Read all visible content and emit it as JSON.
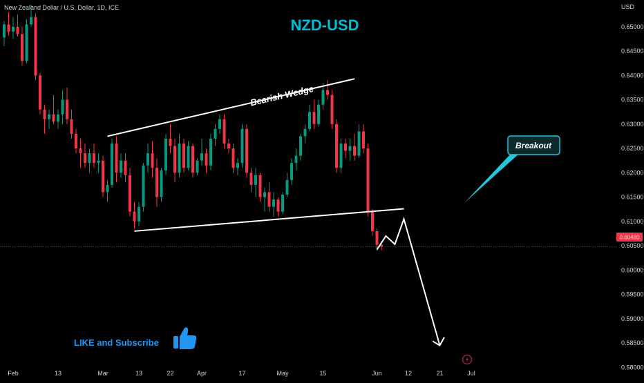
{
  "header": {
    "symbol_label": "New Zealand Dollar / U.S. Dollar, 1D, ICE"
  },
  "currency_label": "USD",
  "title": "NZD-USD",
  "annotations": {
    "wedge_label": "Bearish Wedge",
    "breakout_label": "Breakout",
    "cta_text": "LIKE and Subscribe"
  },
  "icons": {
    "thumbs_up": "thumbs-up-icon",
    "lightning": "lightning-icon"
  },
  "colors": {
    "up": "#089981",
    "down": "#f23645",
    "title": "#00bcd4",
    "cta": "#2196f3",
    "breakout_box": "#0b2a2a",
    "breakout_border": "#26c6da",
    "price_tag": "#f23645"
  },
  "last_price": {
    "value": 0.6048,
    "label": "0.60480"
  },
  "chart_data": {
    "type": "candlestick",
    "title": "NZD-USD",
    "ylim": [
      0.5775,
      0.6555
    ],
    "ytick_values": [
      0.58,
      0.585,
      0.59,
      0.595,
      0.6,
      0.605,
      0.61,
      0.615,
      0.62,
      0.625,
      0.63,
      0.635,
      0.64,
      0.645,
      0.65
    ],
    "yticks": [
      "0.58000",
      "0.58500",
      "0.59000",
      "0.59500",
      "0.60000",
      "0.60500",
      "0.61000",
      "0.61500",
      "0.62000",
      "0.62500",
      "0.63000",
      "0.63500",
      "0.64000",
      "0.64500",
      "0.65000"
    ],
    "xticks": [
      {
        "label": "Feb",
        "index": 2
      },
      {
        "label": "13",
        "index": 12
      },
      {
        "label": "Mar",
        "index": 22
      },
      {
        "label": "13",
        "index": 30
      },
      {
        "label": "22",
        "index": 37
      },
      {
        "label": "Apr",
        "index": 44
      },
      {
        "label": "17",
        "index": 53
      },
      {
        "label": "May",
        "index": 62
      },
      {
        "label": "15",
        "index": 71
      },
      {
        "label": "Jun",
        "index": 83
      },
      {
        "label": "12",
        "index": 90
      },
      {
        "label": "21",
        "index": 97
      },
      {
        "label": "Jul",
        "index": 104
      }
    ],
    "candles": [
      [
        0.6478,
        0.6512,
        0.646,
        0.6505
      ],
      [
        0.6505,
        0.653,
        0.6482,
        0.649
      ],
      [
        0.649,
        0.652,
        0.6475,
        0.65
      ],
      [
        0.65,
        0.6525,
        0.648,
        0.6485
      ],
      [
        0.6485,
        0.65,
        0.642,
        0.643
      ],
      [
        0.643,
        0.6515,
        0.6425,
        0.6505
      ],
      [
        0.6505,
        0.6545,
        0.65,
        0.652
      ],
      [
        0.652,
        0.6528,
        0.639,
        0.64
      ],
      [
        0.64,
        0.6405,
        0.632,
        0.633
      ],
      [
        0.633,
        0.634,
        0.628,
        0.631
      ],
      [
        0.631,
        0.633,
        0.629,
        0.632
      ],
      [
        0.632,
        0.636,
        0.63,
        0.6305
      ],
      [
        0.6305,
        0.633,
        0.629,
        0.632
      ],
      [
        0.632,
        0.637,
        0.63,
        0.635
      ],
      [
        0.635,
        0.6375,
        0.63,
        0.631
      ],
      [
        0.631,
        0.633,
        0.627,
        0.628
      ],
      [
        0.628,
        0.629,
        0.624,
        0.625
      ],
      [
        0.625,
        0.627,
        0.621,
        0.624
      ],
      [
        0.624,
        0.626,
        0.621,
        0.622
      ],
      [
        0.622,
        0.625,
        0.62,
        0.624
      ],
      [
        0.624,
        0.626,
        0.621,
        0.622
      ],
      [
        0.622,
        0.624,
        0.62,
        0.6225
      ],
      [
        0.6225,
        0.6235,
        0.615,
        0.616
      ],
      [
        0.616,
        0.6185,
        0.614,
        0.6175
      ],
      [
        0.6175,
        0.627,
        0.617,
        0.626
      ],
      [
        0.626,
        0.6275,
        0.618,
        0.62
      ],
      [
        0.62,
        0.624,
        0.619,
        0.6225
      ],
      [
        0.6225,
        0.624,
        0.618,
        0.6195
      ],
      [
        0.6195,
        0.621,
        0.611,
        0.612
      ],
      [
        0.612,
        0.614,
        0.6085,
        0.61
      ],
      [
        0.61,
        0.614,
        0.609,
        0.613
      ],
      [
        0.613,
        0.622,
        0.612,
        0.6215
      ],
      [
        0.6215,
        0.626,
        0.62,
        0.624
      ],
      [
        0.624,
        0.6265,
        0.619,
        0.621
      ],
      [
        0.621,
        0.623,
        0.613,
        0.615
      ],
      [
        0.615,
        0.621,
        0.614,
        0.6205
      ],
      [
        0.6205,
        0.628,
        0.6195,
        0.627
      ],
      [
        0.627,
        0.63,
        0.624,
        0.6255
      ],
      [
        0.6255,
        0.627,
        0.618,
        0.62
      ],
      [
        0.62,
        0.628,
        0.619,
        0.626
      ],
      [
        0.626,
        0.627,
        0.62,
        0.621
      ],
      [
        0.621,
        0.6265,
        0.6205,
        0.6255
      ],
      [
        0.6255,
        0.626,
        0.619,
        0.62
      ],
      [
        0.62,
        0.623,
        0.6195,
        0.6225
      ],
      [
        0.6225,
        0.627,
        0.6215,
        0.624
      ],
      [
        0.624,
        0.625,
        0.62,
        0.6215
      ],
      [
        0.6215,
        0.628,
        0.6205,
        0.627
      ],
      [
        0.627,
        0.63,
        0.6255,
        0.629
      ],
      [
        0.629,
        0.632,
        0.628,
        0.631
      ],
      [
        0.631,
        0.632,
        0.625,
        0.626
      ],
      [
        0.626,
        0.627,
        0.624,
        0.625
      ],
      [
        0.625,
        0.626,
        0.62,
        0.621
      ],
      [
        0.621,
        0.623,
        0.6195,
        0.622
      ],
      [
        0.622,
        0.63,
        0.621,
        0.629
      ],
      [
        0.629,
        0.63,
        0.619,
        0.62
      ],
      [
        0.62,
        0.621,
        0.616,
        0.6175
      ],
      [
        0.6175,
        0.621,
        0.615,
        0.6195
      ],
      [
        0.6195,
        0.62,
        0.614,
        0.615
      ],
      [
        0.615,
        0.617,
        0.612,
        0.616
      ],
      [
        0.616,
        0.618,
        0.612,
        0.613
      ],
      [
        0.613,
        0.616,
        0.611,
        0.6145
      ],
      [
        0.6145,
        0.615,
        0.611,
        0.612
      ],
      [
        0.612,
        0.616,
        0.6115,
        0.6155
      ],
      [
        0.6155,
        0.62,
        0.615,
        0.6185
      ],
      [
        0.6185,
        0.623,
        0.6175,
        0.622
      ],
      [
        0.622,
        0.625,
        0.6205,
        0.6235
      ],
      [
        0.6235,
        0.628,
        0.6225,
        0.6275
      ],
      [
        0.6275,
        0.63,
        0.626,
        0.629
      ],
      [
        0.629,
        0.634,
        0.6285,
        0.6325
      ],
      [
        0.6325,
        0.635,
        0.629,
        0.63
      ],
      [
        0.63,
        0.635,
        0.6295,
        0.634
      ],
      [
        0.634,
        0.6385,
        0.633,
        0.637
      ],
      [
        0.637,
        0.639,
        0.635,
        0.636
      ],
      [
        0.636,
        0.637,
        0.629,
        0.63
      ],
      [
        0.63,
        0.631,
        0.62,
        0.621
      ],
      [
        0.621,
        0.627,
        0.62,
        0.626
      ],
      [
        0.626,
        0.627,
        0.623,
        0.6245
      ],
      [
        0.6245,
        0.627,
        0.6225,
        0.6255
      ],
      [
        0.6255,
        0.628,
        0.6225,
        0.6235
      ],
      [
        0.6235,
        0.63,
        0.623,
        0.6285
      ],
      [
        0.6285,
        0.63,
        0.624,
        0.625
      ],
      [
        0.625,
        0.626,
        0.611,
        0.612
      ],
      [
        0.612,
        0.6125,
        0.607,
        0.608
      ],
      [
        0.608,
        0.6085,
        0.604,
        0.6052
      ],
      [
        0.6052,
        0.606,
        0.604,
        0.6048
      ]
    ],
    "trendlines": [
      {
        "name": "wedge-upper",
        "from": [
          23,
          0.6275
        ],
        "to": [
          78,
          0.6393
        ]
      },
      {
        "name": "wedge-lower",
        "from": [
          29,
          0.608
        ],
        "to": [
          89,
          0.6126
        ]
      }
    ],
    "projection": [
      [
        83,
        0.6042
      ],
      [
        85,
        0.607
      ],
      [
        87,
        0.6053
      ],
      [
        89,
        0.6105
      ],
      [
        97,
        0.5845
      ],
      [
        98,
        0.5862
      ]
    ],
    "grid": false,
    "legend": "none"
  }
}
